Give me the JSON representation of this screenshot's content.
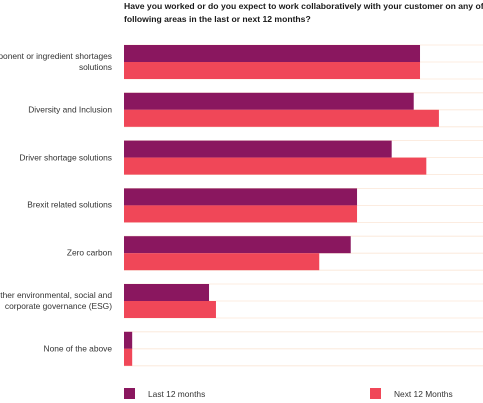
{
  "chart_data": {
    "type": "hbar",
    "title": "Have you worked or do you expect to work collaboratively with your customer on any of the following areas in the last or next 12 months?",
    "categories": [
      "Component or ingredient shortages solutions",
      "Diversity and Inclusion",
      "Driver shortage solutions",
      "Brexit related solutions",
      "Zero carbon",
      "Other environmental, social and corporate governance (ESG)",
      "None of the above"
    ],
    "series": [
      {
        "name": "Last 12 months",
        "color": "#8a175f",
        "values": [
          47,
          46,
          42.5,
          37,
          36,
          13.5,
          1.3
        ]
      },
      {
        "name": "Next 12 Months",
        "color": "#f04758",
        "values": [
          47,
          50,
          48,
          37,
          31,
          14.6,
          1.3
        ]
      }
    ],
    "xlim": [
      0,
      57
    ]
  }
}
